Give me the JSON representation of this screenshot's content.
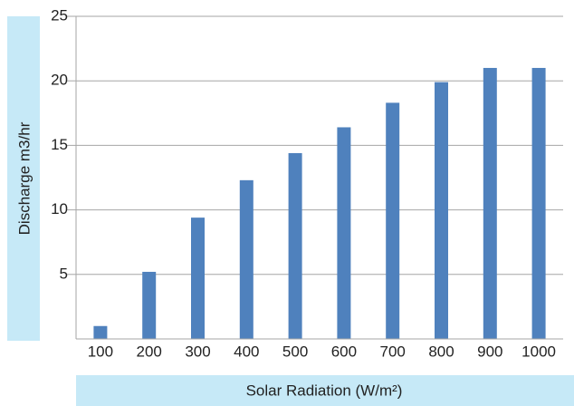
{
  "chart_data": {
    "type": "bar",
    "categories": [
      "100",
      "200",
      "300",
      "400",
      "500",
      "600",
      "700",
      "800",
      "900",
      "1000"
    ],
    "values": [
      1.0,
      5.2,
      9.4,
      12.3,
      14.4,
      16.4,
      18.3,
      19.9,
      21.0,
      21.0
    ],
    "xlabel": "Solar Radiation (W/m²)",
    "ylabel": "Discharge m3/hr",
    "ylim": [
      0,
      25
    ],
    "yticks": [
      5,
      10,
      15,
      20,
      25
    ],
    "grid": "horizontal",
    "legend": "none",
    "colors": {
      "bar": "#4f81bd",
      "label_box": "#c6e9f7",
      "grid": "#a6a6a6",
      "text": "#222222"
    }
  }
}
